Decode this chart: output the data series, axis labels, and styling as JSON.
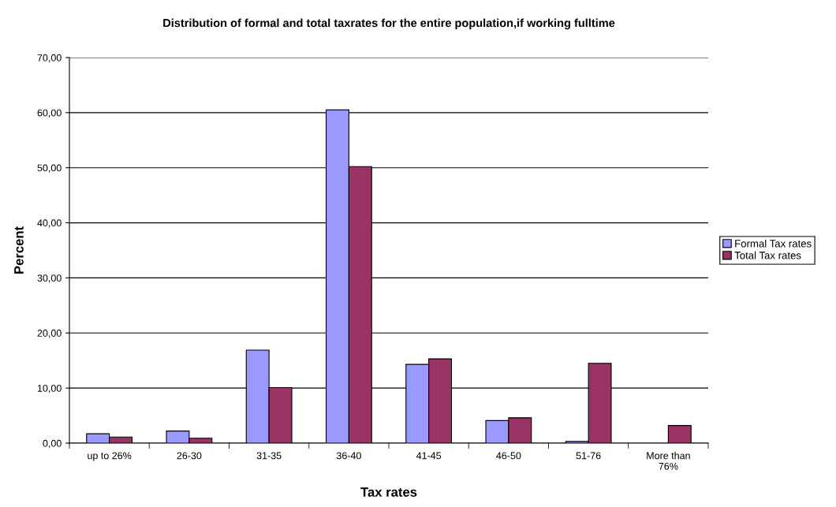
{
  "chart_data": {
    "type": "bar",
    "title": "Distribution of formal and total taxrates for the entire population,if working fulltime",
    "xlabel": "Tax rates",
    "ylabel": "Percent",
    "categories": [
      "up to 26%",
      "26-30",
      "31-35",
      "36-40",
      "41-45",
      "46-50",
      "51-76",
      "More than\n76%"
    ],
    "series": [
      {
        "name": "Formal Tax rates",
        "color": "#9999ff",
        "values": [
          1.7,
          2.2,
          16.9,
          60.5,
          14.3,
          4.1,
          0.3,
          null
        ]
      },
      {
        "name": "Total Tax rates",
        "color": "#993366",
        "values": [
          1.1,
          0.9,
          10.1,
          50.2,
          15.3,
          4.6,
          14.5,
          3.2
        ]
      }
    ],
    "ylim": [
      0,
      70
    ],
    "yticks": [
      {
        "value": 0,
        "label": "0,00"
      },
      {
        "value": 10,
        "label": "10,00"
      },
      {
        "value": 20,
        "label": "20,00"
      },
      {
        "value": 30,
        "label": "30,00"
      },
      {
        "value": 40,
        "label": "40,00"
      },
      {
        "value": 50,
        "label": "50,00"
      },
      {
        "value": 60,
        "label": "60,00"
      },
      {
        "value": 70,
        "label": "70,00"
      }
    ],
    "grid": "y",
    "legend": "right"
  }
}
